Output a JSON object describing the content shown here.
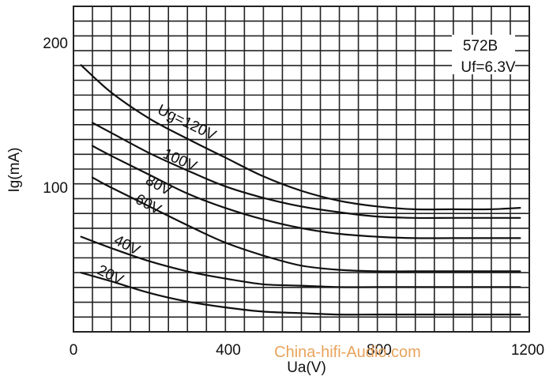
{
  "chart_data": {
    "type": "line",
    "title": "",
    "xlabel": "Ua(V)",
    "ylabel": "Ig(mA)",
    "xlim": [
      0,
      1200
    ],
    "ylim": [
      0,
      210
    ],
    "xticks": [
      "0",
      "400",
      "800",
      "1200"
    ],
    "yticks": [
      "100",
      "200"
    ],
    "grid": true,
    "annotation": {
      "line1": "572B",
      "line2": "Uf=6.3V"
    },
    "series": [
      {
        "name": "Ug=120V",
        "x": [
          20,
          100,
          200,
          300,
          400,
          500,
          600,
          700,
          800,
          900,
          1000,
          1100,
          1180
        ],
        "values": [
          185,
          166,
          148,
          134,
          121,
          108,
          98,
          91,
          87,
          85,
          85,
          85,
          86
        ]
      },
      {
        "name": "100V",
        "x": [
          50,
          100,
          200,
          300,
          400,
          500,
          600,
          700,
          800,
          900,
          1000,
          1100,
          1180
        ],
        "values": [
          145,
          138,
          124,
          112,
          101,
          93,
          87,
          83,
          80,
          79,
          79,
          79,
          79
        ]
      },
      {
        "name": "80V",
        "x": [
          50,
          100,
          200,
          300,
          400,
          500,
          600,
          700,
          800,
          900,
          1000,
          1100,
          1180
        ],
        "values": [
          129,
          122,
          109,
          96,
          86,
          78,
          72,
          68,
          66,
          65,
          65,
          65,
          65
        ]
      },
      {
        "name": "60V",
        "x": [
          50,
          100,
          200,
          300,
          400,
          500,
          600,
          700,
          800,
          900,
          1000,
          1100,
          1180
        ],
        "values": [
          107,
          100,
          87,
          74,
          62,
          53,
          46,
          43,
          42,
          42,
          42,
          42,
          42
        ]
      },
      {
        "name": "40V",
        "x": [
          20,
          100,
          200,
          300,
          400,
          500,
          600,
          700,
          800,
          900,
          1000,
          1100,
          1180
        ],
        "values": [
          66,
          58,
          49,
          42,
          37,
          33,
          32,
          31,
          31,
          31,
          31,
          31,
          31
        ]
      },
      {
        "name": "20V",
        "x": [
          20,
          100,
          200,
          300,
          400,
          500,
          600,
          700,
          800,
          900,
          1000,
          1100,
          1180
        ],
        "values": [
          41,
          35,
          27,
          21,
          17,
          14,
          13,
          12,
          12,
          12,
          12,
          12,
          12
        ]
      }
    ],
    "labels": [
      {
        "text": "Ug=120V",
        "series": 0
      },
      {
        "text": "100V",
        "series": 1
      },
      {
        "text": "80V",
        "series": 2
      },
      {
        "text": "60V",
        "series": 3
      },
      {
        "text": "40V",
        "series": 4
      },
      {
        "text": "20V",
        "series": 5
      }
    ]
  },
  "watermark": "China-hifi-Audio.com",
  "colors": {
    "grid": "#222222",
    "curve": "#111111",
    "watermark": "#e8a35c"
  }
}
